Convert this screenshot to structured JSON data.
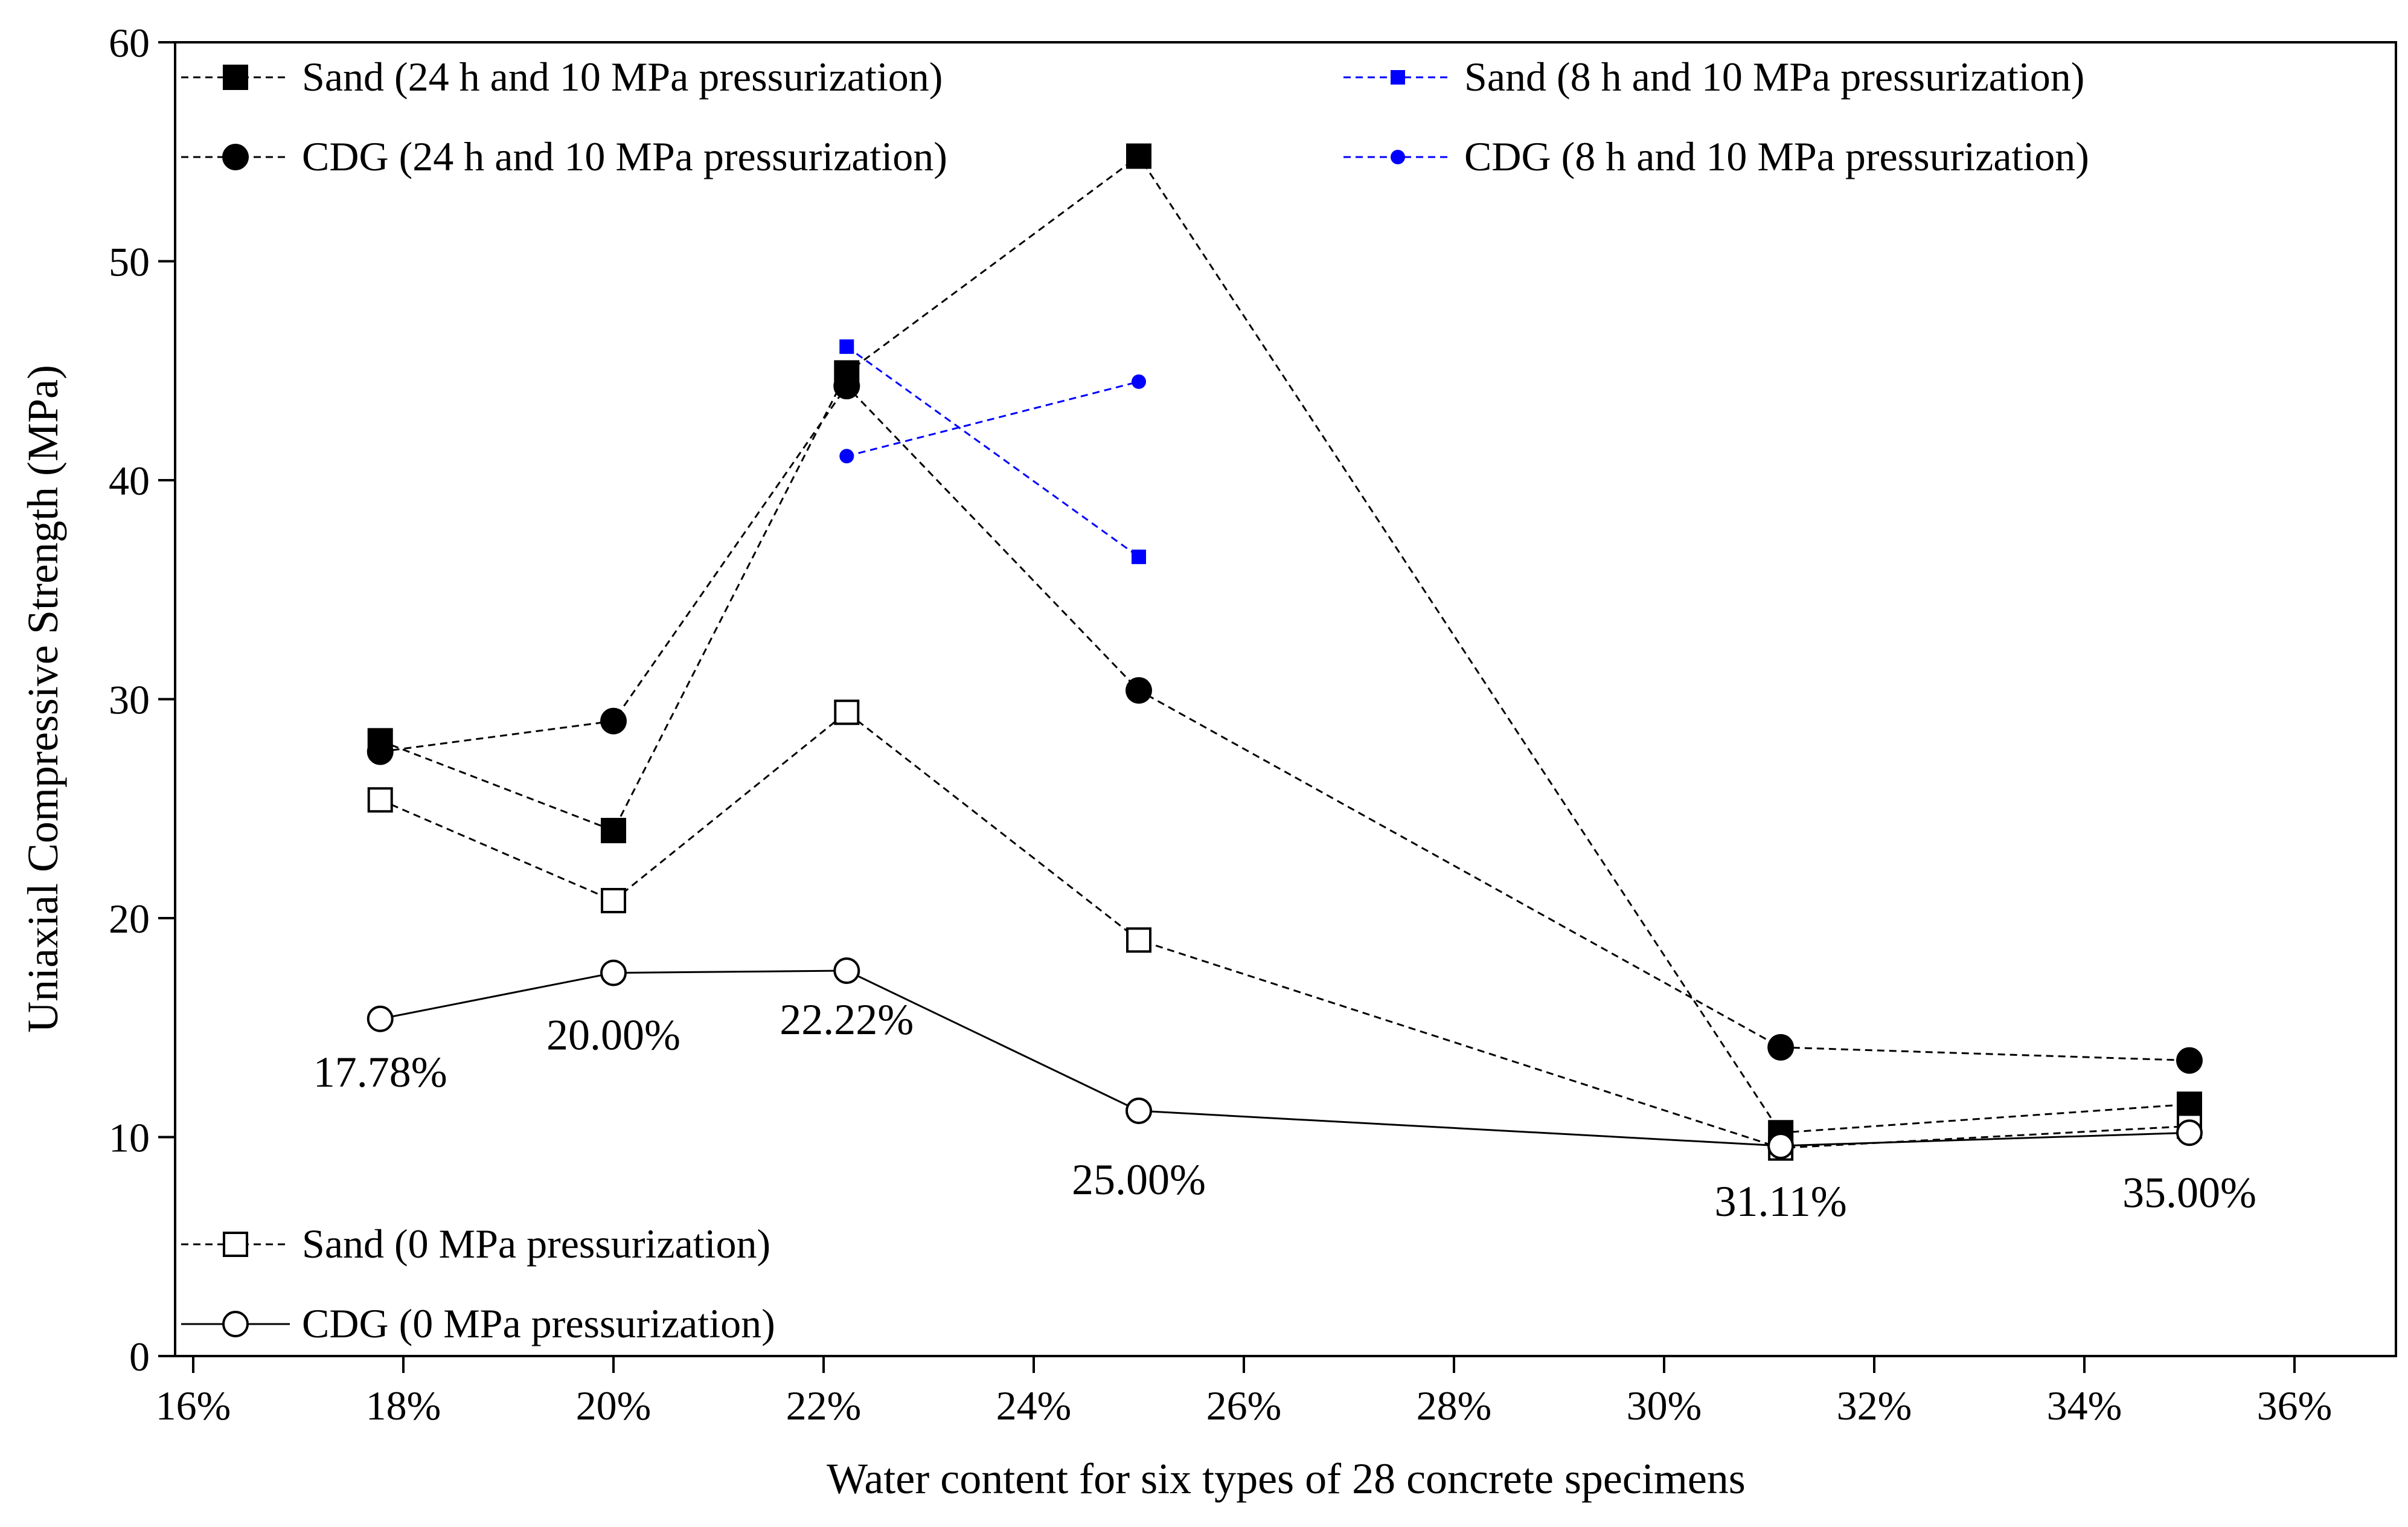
{
  "chart_data": {
    "type": "line",
    "title": "",
    "xlabel": "Water content for six types of 28 concrete specimens",
    "ylabel": "Uniaxial Compressive Strength (MPa)",
    "xlim": [
      16,
      36
    ],
    "ylim": [
      0,
      60
    ],
    "x_ticks": [
      16,
      18,
      20,
      22,
      24,
      26,
      28,
      30,
      32,
      34,
      36
    ],
    "x_tick_labels": [
      "16%",
      "18%",
      "20%",
      "22%",
      "24%",
      "26%",
      "28%",
      "30%",
      "32%",
      "34%",
      "36%"
    ],
    "y_ticks": [
      0,
      10,
      20,
      30,
      40,
      50,
      60
    ],
    "y_tick_labels": [
      "0",
      "10",
      "20",
      "30",
      "40",
      "50",
      "60"
    ],
    "grid": false,
    "series": [
      {
        "name": "Sand (24 h and 10 MPa pressurization)",
        "marker": "square-filled",
        "line": "dashed",
        "color": "#000000",
        "x": [
          17.78,
          20.0,
          22.22,
          25.0,
          31.11,
          35.0
        ],
        "y": [
          28.1,
          24.0,
          44.9,
          54.8,
          10.2,
          11.5
        ]
      },
      {
        "name": "CDG (24 h and 10 MPa pressurization)",
        "marker": "circle-filled",
        "line": "dashed",
        "color": "#000000",
        "x": [
          17.78,
          20.0,
          22.22,
          25.0,
          31.11,
          35.0
        ],
        "y": [
          27.6,
          29.0,
          44.3,
          30.4,
          14.1,
          13.5
        ]
      },
      {
        "name": "Sand (8 h and 10 MPa pressurization)",
        "marker": "square-filled-small",
        "line": "dashed",
        "color": "#0000ff",
        "x": [
          22.22,
          25.0
        ],
        "y": [
          46.1,
          36.5
        ]
      },
      {
        "name": "CDG (8 h and 10 MPa pressurization)",
        "marker": "circle-filled-small",
        "line": "dashed",
        "color": "#0000ff",
        "x": [
          22.22,
          25.0
        ],
        "y": [
          41.1,
          44.5
        ]
      },
      {
        "name": "Sand (0 MPa pressurization)",
        "marker": "square-open",
        "line": "dashed",
        "color": "#000000",
        "x": [
          17.78,
          20.0,
          22.22,
          25.0,
          31.11,
          35.0
        ],
        "y": [
          25.4,
          20.8,
          29.4,
          19.0,
          9.5,
          10.5
        ]
      },
      {
        "name": "CDG (0 MPa pressurization)",
        "marker": "circle-open",
        "line": "solid",
        "color": "#000000",
        "x": [
          17.78,
          20.0,
          22.22,
          25.0,
          31.11,
          35.0
        ],
        "y": [
          15.4,
          17.5,
          17.6,
          11.2,
          9.6,
          10.2
        ]
      }
    ],
    "annotations": [
      {
        "text": "17.78%",
        "x": 17.78,
        "y": 12.3
      },
      {
        "text": "20.00%",
        "x": 20.0,
        "y": 14.0
      },
      {
        "text": "22.22%",
        "x": 22.22,
        "y": 14.7
      },
      {
        "text": "25.00%",
        "x": 25.0,
        "y": 7.4
      },
      {
        "text": "31.11%",
        "x": 31.11,
        "y": 6.4
      },
      {
        "text": "35.00%",
        "x": 35.0,
        "y": 6.8
      }
    ],
    "legend_groups": [
      {
        "placement": "top-left",
        "items": [
          0,
          1
        ]
      },
      {
        "placement": "top-right",
        "items": [
          2,
          3
        ]
      },
      {
        "placement": "bottom-left",
        "items": [
          4,
          5
        ]
      }
    ]
  }
}
